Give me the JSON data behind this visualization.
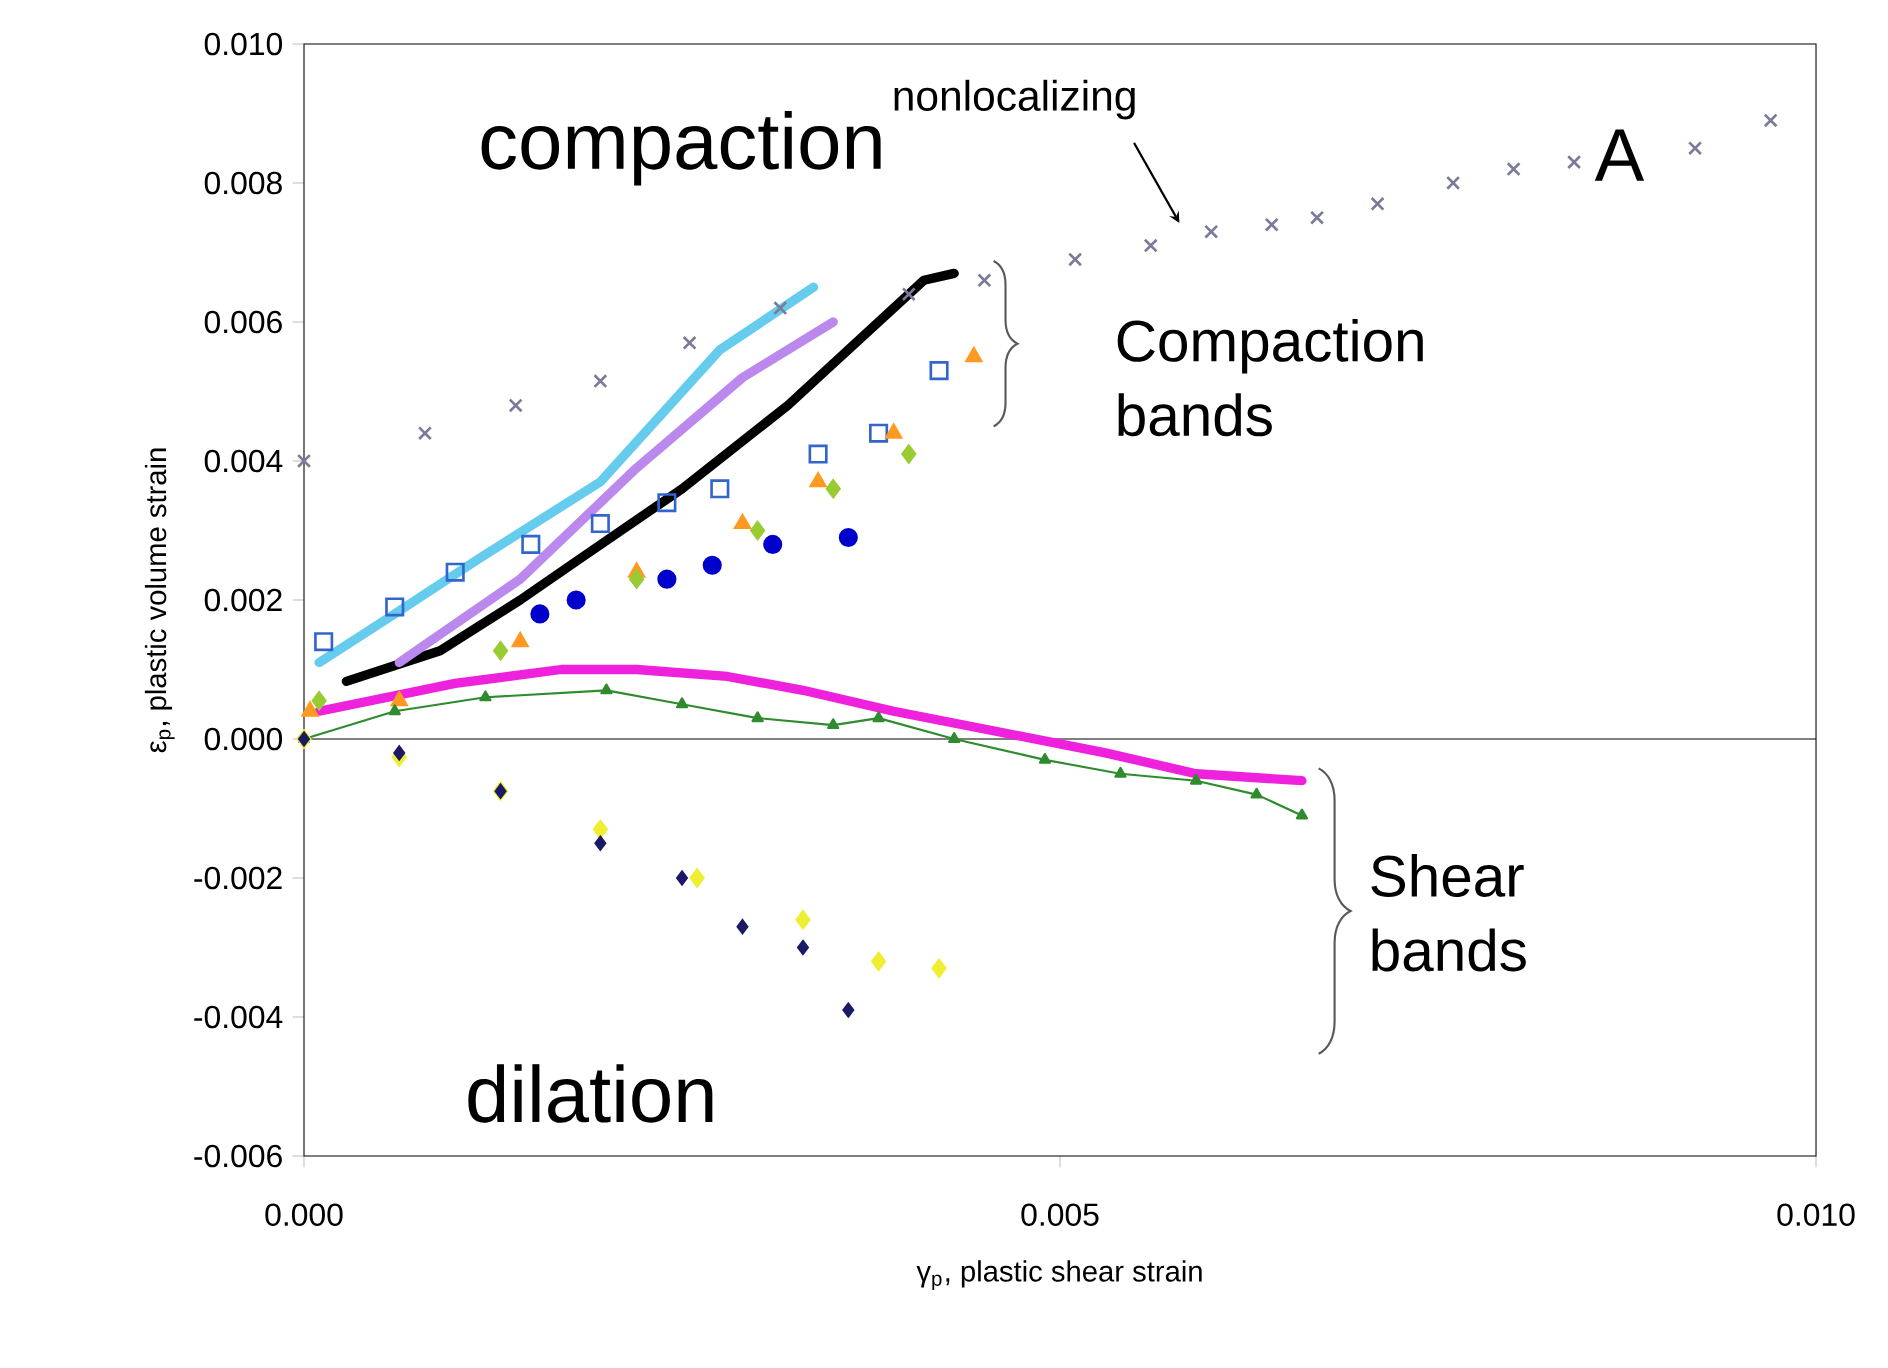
{
  "chart_data": {
    "type": "scatter",
    "xlabel": "γ$_{p}$, plastic shear strain",
    "ylabel": "ε$_{p}$, plastic volume strain",
    "xlim": [
      0,
      0.01
    ],
    "ylim": [
      -0.006,
      0.01
    ],
    "xticks": [
      {
        "value": 0,
        "label": "0.000"
      },
      {
        "value": 0.005,
        "label": "0.005"
      },
      {
        "value": 0.01,
        "label": "0.010"
      }
    ],
    "yticks": [
      {
        "value": -0.006,
        "label": "-0.006"
      },
      {
        "value": -0.004,
        "label": "-0.004"
      },
      {
        "value": -0.002,
        "label": "-0.002"
      },
      {
        "value": 0,
        "label": "0.000"
      },
      {
        "value": 0.002,
        "label": "0.002"
      },
      {
        "value": 0.004,
        "label": "0.004"
      },
      {
        "value": 0.006,
        "label": "0.006"
      },
      {
        "value": 0.008,
        "label": "0.008"
      },
      {
        "value": 0.01,
        "label": "0.010"
      }
    ],
    "grid": false,
    "ref_lines": [
      {
        "axis": "y",
        "value": 0,
        "color": "#000000"
      }
    ],
    "series": [
      {
        "type": "scatter",
        "marker": "cross",
        "color": "#7a7a99",
        "x": [
          0,
          0.0008,
          0.0014,
          0.00196,
          0.00255,
          0.00315,
          0.004,
          0.0045,
          0.0051,
          0.0056,
          0.006,
          0.0064,
          0.0067,
          0.0071,
          0.0076,
          0.008,
          0.0084,
          0.0092,
          0.0097
        ],
        "values": [
          0.004,
          0.0044,
          0.0048,
          0.00515,
          0.0057,
          0.0062,
          0.0064,
          0.0066,
          0.0069,
          0.0071,
          0.0073,
          0.0074,
          0.0075,
          0.0077,
          0.008,
          0.0082,
          0.0083,
          0.0085,
          0.0089
        ]
      },
      {
        "type": "line",
        "marker": "none",
        "color": "#66ccee",
        "x": [
          0.0001,
          0.0006,
          0.00116,
          0.00196,
          0.00275,
          0.00337
        ],
        "values": [
          0.0011,
          0.0018,
          0.0026,
          0.0037,
          0.0056,
          0.0065
        ]
      },
      {
        "type": "scatter",
        "marker": "square",
        "color": "#3366cc",
        "x": [
          0.00013,
          0.0006,
          0.001,
          0.0015,
          0.00196,
          0.0024,
          0.00275,
          0.0034,
          0.0038,
          0.0042
        ],
        "values": [
          0.0014,
          0.0019,
          0.0024,
          0.0028,
          0.0031,
          0.0034,
          0.0036,
          0.0041,
          0.0044,
          0.0053
        ]
      },
      {
        "type": "line",
        "marker": "none",
        "color": "#000000",
        "x": [
          0.00028,
          0.0009,
          0.00143,
          0.00183,
          0.0025,
          0.0032,
          0.0035,
          0.0041,
          0.0043
        ],
        "values": [
          0.00083,
          0.00127,
          0.002,
          0.0026,
          0.0036,
          0.0048,
          0.0054,
          0.0066,
          0.0067
        ]
      },
      {
        "type": "line",
        "marker": "none",
        "color": "#bb88ee",
        "x": [
          0.00063,
          0.00143,
          0.0022,
          0.0029,
          0.0035
        ],
        "values": [
          0.0011,
          0.0023,
          0.0039,
          0.0052,
          0.006
        ]
      },
      {
        "type": "scatter",
        "marker": "triangle",
        "color": "#ff9922",
        "x": [
          4e-05,
          0.00063,
          0.00143,
          0.0022,
          0.0029,
          0.0034,
          0.0039,
          0.00443
        ],
        "values": [
          0.0004,
          0.00055,
          0.0014,
          0.0024,
          0.0031,
          0.0037,
          0.0044,
          0.0055
        ]
      },
      {
        "type": "scatter",
        "marker": "diamond",
        "color": "#99cc33",
        "x": [
          0.0001,
          0.0013,
          0.0022,
          0.003,
          0.0035,
          0.004
        ],
        "values": [
          0.00055,
          0.00127,
          0.0023,
          0.003,
          0.0036,
          0.0041
        ]
      },
      {
        "type": "scatter",
        "marker": "circle",
        "color": "#0000cc",
        "x": [
          0.00156,
          0.0018,
          0.0024,
          0.0027,
          0.0031,
          0.0036
        ],
        "values": [
          0.0018,
          0.002,
          0.0023,
          0.0025,
          0.0028,
          0.0029
        ]
      },
      {
        "type": "line",
        "marker": "none",
        "color": "#ee22dd",
        "x": [
          0.0001,
          0.001,
          0.0017,
          0.0022,
          0.0028,
          0.0033,
          0.0039,
          0.0046,
          0.0053,
          0.0059,
          0.0066
        ],
        "values": [
          0.0004,
          0.0008,
          0.001,
          0.001,
          0.0009,
          0.0007,
          0.0004,
          0.0001,
          -0.0002,
          -0.0005,
          -0.0006
        ]
      },
      {
        "type": "line",
        "marker": "triangle",
        "color": "#2e8b2e",
        "x": [
          0,
          0.0006,
          0.0012,
          0.002,
          0.0025,
          0.003,
          0.0035,
          0.0038,
          0.0043,
          0.0049,
          0.0054,
          0.0059,
          0.0063,
          0.0066
        ],
        "values": [
          0,
          0.0004,
          0.0006,
          0.0007,
          0.0005,
          0.0003,
          0.0002,
          0.0003,
          0,
          -0.0003,
          -0.0005,
          -0.0006,
          -0.0008,
          -0.0011
        ]
      },
      {
        "type": "scatter",
        "marker": "diamond",
        "color": "#eeee33",
        "x": [
          0,
          0.00063,
          0.0013,
          0.00196,
          0.0026,
          0.0033,
          0.0038,
          0.0042
        ],
        "values": [
          0,
          -0.00026,
          -0.00075,
          -0.0013,
          -0.002,
          -0.0026,
          -0.0032,
          -0.0033
        ]
      },
      {
        "type": "scatter",
        "marker": "diamond",
        "color": "#1a1a66",
        "x": [
          0,
          0.00063,
          0.0013,
          0.00196,
          0.0025,
          0.0029,
          0.0033,
          0.0036
        ],
        "values": [
          0,
          -0.0002,
          -0.00075,
          -0.0015,
          -0.002,
          -0.0027,
          -0.003,
          -0.0039
        ]
      }
    ],
    "annotations": [
      "compaction",
      "nonlocalizing",
      "A",
      "Compaction bands",
      "Shear bands",
      "dilation"
    ]
  }
}
